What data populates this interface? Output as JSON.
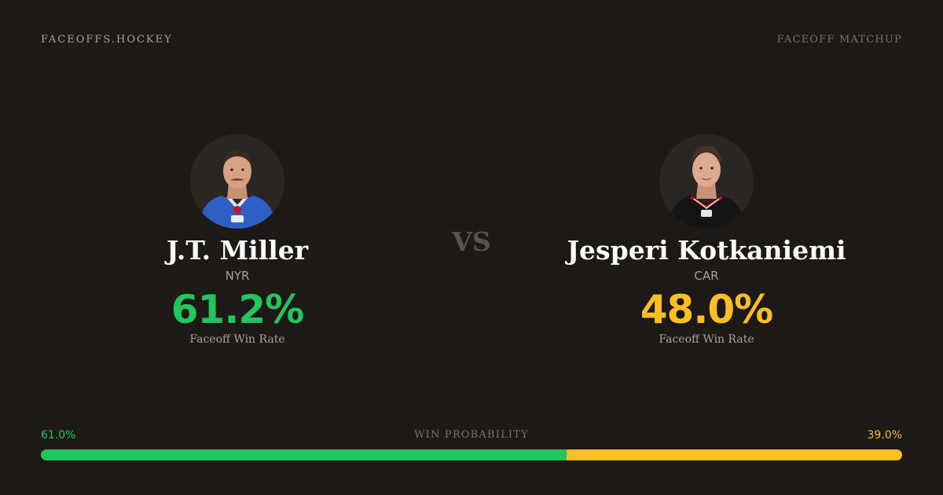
{
  "header": {
    "brand": "FACEOFFS.HOCKEY",
    "page_label": "FACEOFF MATCHUP"
  },
  "colors": {
    "background": "#1c1917",
    "home_accent": "#22c55e",
    "away_accent": "#fbbf24"
  },
  "matchup": {
    "vs_label": "VS",
    "home": {
      "name": "J.T. Miller",
      "team": "NYR",
      "win_rate": "61.2%",
      "win_rate_label": "Faceoff Win Rate",
      "photo_icon": "player-headshot-icon"
    },
    "away": {
      "name": "Jesperi Kotkaniemi",
      "team": "CAR",
      "win_rate": "48.0%",
      "win_rate_label": "Faceoff Win Rate",
      "photo_icon": "player-headshot-icon"
    }
  },
  "win_probability": {
    "title": "WIN PROBABILITY",
    "home_label": "61.0%",
    "away_label": "39.0%",
    "home_fraction": 0.61,
    "away_fraction": 0.39
  }
}
